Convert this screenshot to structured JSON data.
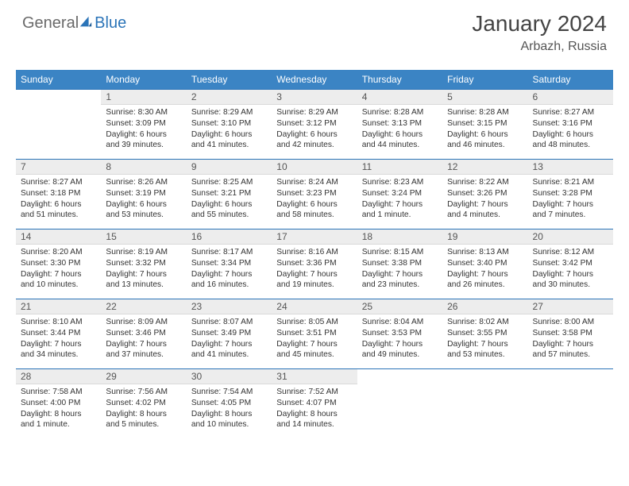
{
  "brand": {
    "word1": "General",
    "word2": "Blue"
  },
  "title": "January 2024",
  "location": "Arbazh, Russia",
  "colors": {
    "header_bg": "#3b84c4",
    "rule": "#2b74b8",
    "daybar": "#ededed",
    "text": "#333333",
    "brand_gray": "#6a6a6a",
    "brand_blue": "#2b74b8",
    "bg": "#ffffff"
  },
  "fontsize": {
    "title": 28,
    "subtitle": 16,
    "weekday": 12,
    "daynum": 12,
    "cell": 10.2
  },
  "weekdays": [
    "Sunday",
    "Monday",
    "Tuesday",
    "Wednesday",
    "Thursday",
    "Friday",
    "Saturday"
  ],
  "layout": {
    "first_weekday_offset": 1,
    "rows": 5,
    "cols": 7
  },
  "labels": {
    "sunrise": "Sunrise:",
    "sunset": "Sunset:",
    "daylight": "Daylight:"
  },
  "days": [
    {
      "n": 1,
      "sr": "8:30 AM",
      "ss": "3:09 PM",
      "dl": "6 hours and 39 minutes."
    },
    {
      "n": 2,
      "sr": "8:29 AM",
      "ss": "3:10 PM",
      "dl": "6 hours and 41 minutes."
    },
    {
      "n": 3,
      "sr": "8:29 AM",
      "ss": "3:12 PM",
      "dl": "6 hours and 42 minutes."
    },
    {
      "n": 4,
      "sr": "8:28 AM",
      "ss": "3:13 PM",
      "dl": "6 hours and 44 minutes."
    },
    {
      "n": 5,
      "sr": "8:28 AM",
      "ss": "3:15 PM",
      "dl": "6 hours and 46 minutes."
    },
    {
      "n": 6,
      "sr": "8:27 AM",
      "ss": "3:16 PM",
      "dl": "6 hours and 48 minutes."
    },
    {
      "n": 7,
      "sr": "8:27 AM",
      "ss": "3:18 PM",
      "dl": "6 hours and 51 minutes."
    },
    {
      "n": 8,
      "sr": "8:26 AM",
      "ss": "3:19 PM",
      "dl": "6 hours and 53 minutes."
    },
    {
      "n": 9,
      "sr": "8:25 AM",
      "ss": "3:21 PM",
      "dl": "6 hours and 55 minutes."
    },
    {
      "n": 10,
      "sr": "8:24 AM",
      "ss": "3:23 PM",
      "dl": "6 hours and 58 minutes."
    },
    {
      "n": 11,
      "sr": "8:23 AM",
      "ss": "3:24 PM",
      "dl": "7 hours and 1 minute."
    },
    {
      "n": 12,
      "sr": "8:22 AM",
      "ss": "3:26 PM",
      "dl": "7 hours and 4 minutes."
    },
    {
      "n": 13,
      "sr": "8:21 AM",
      "ss": "3:28 PM",
      "dl": "7 hours and 7 minutes."
    },
    {
      "n": 14,
      "sr": "8:20 AM",
      "ss": "3:30 PM",
      "dl": "7 hours and 10 minutes."
    },
    {
      "n": 15,
      "sr": "8:19 AM",
      "ss": "3:32 PM",
      "dl": "7 hours and 13 minutes."
    },
    {
      "n": 16,
      "sr": "8:17 AM",
      "ss": "3:34 PM",
      "dl": "7 hours and 16 minutes."
    },
    {
      "n": 17,
      "sr": "8:16 AM",
      "ss": "3:36 PM",
      "dl": "7 hours and 19 minutes."
    },
    {
      "n": 18,
      "sr": "8:15 AM",
      "ss": "3:38 PM",
      "dl": "7 hours and 23 minutes."
    },
    {
      "n": 19,
      "sr": "8:13 AM",
      "ss": "3:40 PM",
      "dl": "7 hours and 26 minutes."
    },
    {
      "n": 20,
      "sr": "8:12 AM",
      "ss": "3:42 PM",
      "dl": "7 hours and 30 minutes."
    },
    {
      "n": 21,
      "sr": "8:10 AM",
      "ss": "3:44 PM",
      "dl": "7 hours and 34 minutes."
    },
    {
      "n": 22,
      "sr": "8:09 AM",
      "ss": "3:46 PM",
      "dl": "7 hours and 37 minutes."
    },
    {
      "n": 23,
      "sr": "8:07 AM",
      "ss": "3:49 PM",
      "dl": "7 hours and 41 minutes."
    },
    {
      "n": 24,
      "sr": "8:05 AM",
      "ss": "3:51 PM",
      "dl": "7 hours and 45 minutes."
    },
    {
      "n": 25,
      "sr": "8:04 AM",
      "ss": "3:53 PM",
      "dl": "7 hours and 49 minutes."
    },
    {
      "n": 26,
      "sr": "8:02 AM",
      "ss": "3:55 PM",
      "dl": "7 hours and 53 minutes."
    },
    {
      "n": 27,
      "sr": "8:00 AM",
      "ss": "3:58 PM",
      "dl": "7 hours and 57 minutes."
    },
    {
      "n": 28,
      "sr": "7:58 AM",
      "ss": "4:00 PM",
      "dl": "8 hours and 1 minute."
    },
    {
      "n": 29,
      "sr": "7:56 AM",
      "ss": "4:02 PM",
      "dl": "8 hours and 5 minutes."
    },
    {
      "n": 30,
      "sr": "7:54 AM",
      "ss": "4:05 PM",
      "dl": "8 hours and 10 minutes."
    },
    {
      "n": 31,
      "sr": "7:52 AM",
      "ss": "4:07 PM",
      "dl": "8 hours and 14 minutes."
    }
  ]
}
